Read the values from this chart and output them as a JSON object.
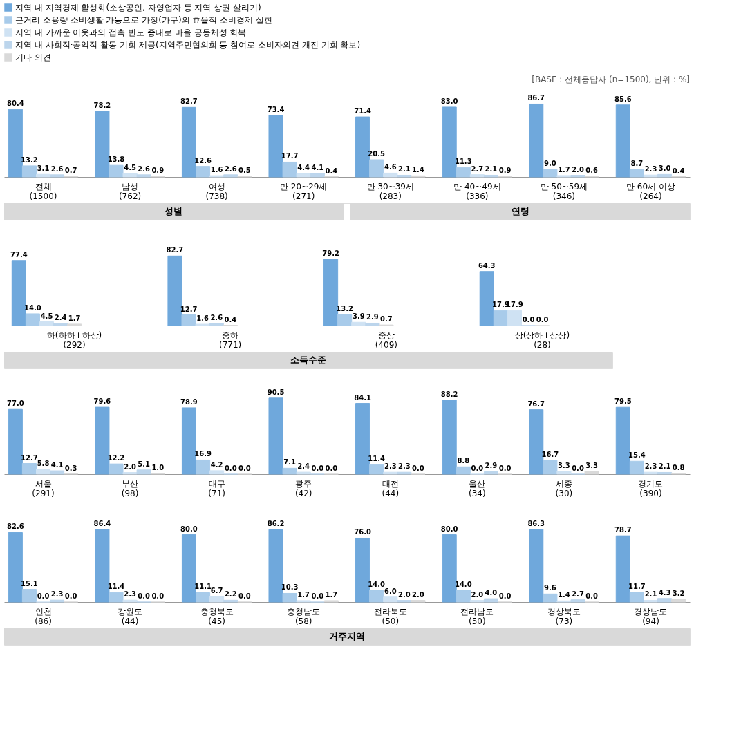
{
  "chart_data": [
    {
      "type": "bar",
      "subtitle": "[BASE : 전체응답자 (n=1500), 단위 : %]",
      "legend": "top left",
      "categories": [
        "전체\n(1500)",
        "남성\n(762)",
        "여성\n(738)",
        "만 20~29세\n(271)",
        "만 30~39세\n(283)",
        "만 40~49세\n(336)",
        "만 50~59세\n(346)",
        "만 60세 이상\n(264)"
      ],
      "series": [
        {
          "name": "지역 내 지역경제 활성화(소상공인, 자영업자 등 지역 상권 살리기)",
          "color": "#6fa8dc",
          "values": [
            80.4,
            78.2,
            82.7,
            73.4,
            71.4,
            83.0,
            86.7,
            85.6
          ],
          "value_labels": [
            "80.4",
            "78.2",
            "82.7",
            "73.4",
            "71.4",
            "83.0",
            "86.7",
            "85.6"
          ]
        },
        {
          "name": "근거리 소용량 소비생활 가능으로 가정(가구)의 효율적 소비경제 실현",
          "color": "#a8cbea",
          "values": [
            13.2,
            13.8,
            12.6,
            17.7,
            20.5,
            11.3,
            9.0,
            8.7
          ],
          "value_labels": [
            "13.2",
            "13.8",
            "12.6",
            "17.7",
            "20.5",
            "11.3",
            "9.0",
            "8.7"
          ]
        },
        {
          "name": "지역 내 가까운 이웃과의 접촉 빈도 증대로 마을 공동체성 회복",
          "color": "#cfe2f3",
          "values": [
            3.1,
            4.5,
            1.6,
            4.4,
            4.6,
            2.7,
            1.7,
            2.3
          ],
          "value_labels": [
            "3.1",
            "4.5",
            "1.6",
            "4.4",
            "4.6",
            "2.7",
            "1.7",
            "2.3"
          ]
        },
        {
          "name": "지역 내 사회적·공익적 활동 기회 제공(지역주민협의회 등 참여로 소비자의견 개진 기회 확보)",
          "color": "#bcd5ec",
          "values": [
            2.6,
            2.6,
            2.6,
            4.1,
            2.1,
            2.1,
            2.0,
            3.0
          ],
          "value_labels": [
            "2.6",
            "2.6",
            "2.6",
            "4.1",
            "2.1",
            "2.1",
            "2.0",
            "3.0"
          ]
        },
        {
          "name": "기타 의견",
          "color": "#d9d9d9",
          "values": [
            0.7,
            0.9,
            0.5,
            0.4,
            1.4,
            0.9,
            0.6,
            0.4
          ],
          "value_labels": [
            "0.7",
            "0.9",
            "0.5",
            "0.4",
            "1.4",
            "0.9",
            "0.6",
            "0.4"
          ]
        }
      ],
      "annotations": [
        "성별",
        "연령"
      ]
    },
    {
      "type": "bar",
      "categories": [
        "하(하하+하상)\n(292)",
        "중하\n(771)",
        "중상\n(409)",
        "상(상하+상상)\n(28)"
      ],
      "series": [
        {
          "color": "#6fa8dc",
          "values": [
            77.4,
            82.7,
            79.2,
            64.3
          ],
          "value_labels": [
            "77.4",
            "82.7",
            "79.2",
            "64.3"
          ]
        },
        {
          "color": "#a8cbea",
          "values": [
            14.0,
            12.7,
            13.2,
            17.9
          ],
          "value_labels": [
            "14.0",
            "12.7",
            "13.2",
            "17.9"
          ]
        },
        {
          "color": "#cfe2f3",
          "values": [
            4.5,
            1.6,
            3.9,
            17.9
          ],
          "value_labels": [
            "4.5",
            "1.6",
            "3.9",
            "17.9"
          ]
        },
        {
          "color": "#bcd5ec",
          "values": [
            2.4,
            2.6,
            2.9,
            0.0
          ],
          "value_labels": [
            "2.4",
            "2.6",
            "2.9",
            "0.0"
          ]
        },
        {
          "color": "#d9d9d9",
          "values": [
            1.7,
            0.4,
            0.7,
            0.0
          ],
          "value_labels": [
            "1.7",
            "0.4",
            "0.7",
            "0.0"
          ]
        }
      ],
      "annotations": [
        "소득수준"
      ]
    },
    {
      "type": "bar",
      "categories": [
        "서울\n(291)",
        "부산\n(98)",
        "대구\n(71)",
        "광주\n(42)",
        "대전\n(44)",
        "울산\n(34)",
        "세종\n(30)",
        "경기도\n(390)"
      ],
      "series": [
        {
          "color": "#6fa8dc",
          "values": [
            77.0,
            79.6,
            78.9,
            90.5,
            84.1,
            88.2,
            76.7,
            79.5
          ],
          "value_labels": [
            "77.0",
            "79.6",
            "78.9",
            "90.5",
            "84.1",
            "88.2",
            "76.7",
            "79.5"
          ]
        },
        {
          "color": "#a8cbea",
          "values": [
            12.7,
            12.2,
            16.9,
            7.1,
            11.4,
            8.8,
            16.7,
            15.4
          ],
          "value_labels": [
            "12.7",
            "12.2",
            "16.9",
            "7.1",
            "11.4",
            "8.8",
            "16.7",
            "15.4"
          ]
        },
        {
          "color": "#cfe2f3",
          "values": [
            5.8,
            2.0,
            4.2,
            2.4,
            2.3,
            0.0,
            3.3,
            2.3
          ],
          "value_labels": [
            "5.8",
            "2.0",
            "4.2",
            "2.4",
            "2.3",
            "0.0",
            "3.3",
            "2.3"
          ]
        },
        {
          "color": "#bcd5ec",
          "values": [
            4.1,
            5.1,
            0.0,
            0.0,
            2.3,
            2.9,
            0.0,
            2.1
          ],
          "value_labels": [
            "4.1",
            "5.1",
            "0.0",
            "0.0",
            "2.3",
            "2.9",
            "0.0",
            "2.1"
          ]
        },
        {
          "color": "#d9d9d9",
          "values": [
            0.3,
            1.0,
            0.0,
            0.0,
            0.0,
            0.0,
            3.3,
            0.8
          ],
          "value_labels": [
            "0.3",
            "1.0",
            "0.0",
            "0.0",
            "0.0",
            "0.0",
            "3.3",
            "0.8"
          ]
        }
      ]
    },
    {
      "type": "bar",
      "categories": [
        "인천\n(86)",
        "강원도\n(44)",
        "충청북도\n(45)",
        "충청남도\n(58)",
        "전라북도\n(50)",
        "전라남도\n(50)",
        "경상북도\n(73)",
        "경상남도\n(94)"
      ],
      "series": [
        {
          "color": "#6fa8dc",
          "values": [
            82.6,
            86.4,
            80.0,
            86.2,
            76.0,
            80.0,
            86.3,
            78.7
          ],
          "value_labels": [
            "82.6",
            "86.4",
            "80.0",
            "86.2",
            "76.0",
            "80.0",
            "86.3",
            "78.7"
          ]
        },
        {
          "color": "#a8cbea",
          "values": [
            15.1,
            11.4,
            11.1,
            10.3,
            14.0,
            14.0,
            9.6,
            11.7
          ],
          "value_labels": [
            "15.1",
            "11.4",
            "11.1",
            "10.3",
            "14.0",
            "14.0",
            "9.6",
            "11.7"
          ]
        },
        {
          "color": "#cfe2f3",
          "values": [
            0.0,
            2.3,
            6.7,
            1.7,
            6.0,
            2.0,
            1.4,
            2.1
          ],
          "value_labels": [
            "0.0",
            "2.3",
            "6.7",
            "1.7",
            "6.0",
            "2.0",
            "1.4",
            "2.1"
          ]
        },
        {
          "color": "#bcd5ec",
          "values": [
            2.3,
            0.0,
            2.2,
            0.0,
            2.0,
            4.0,
            2.7,
            4.3
          ],
          "value_labels": [
            "2.3",
            "0.0",
            "2.2",
            "0.0",
            "2.0",
            "4.0",
            "2.7",
            "4.3"
          ]
        },
        {
          "color": "#d9d9d9",
          "values": [
            0.0,
            0.0,
            0.0,
            1.7,
            2.0,
            0.0,
            0.0,
            3.2
          ],
          "value_labels": [
            "0.0",
            "0.0",
            "0.0",
            "1.7",
            "2.0",
            "0.0",
            "0.0",
            "3.2"
          ]
        }
      ],
      "annotations": [
        "거주지역"
      ]
    }
  ]
}
